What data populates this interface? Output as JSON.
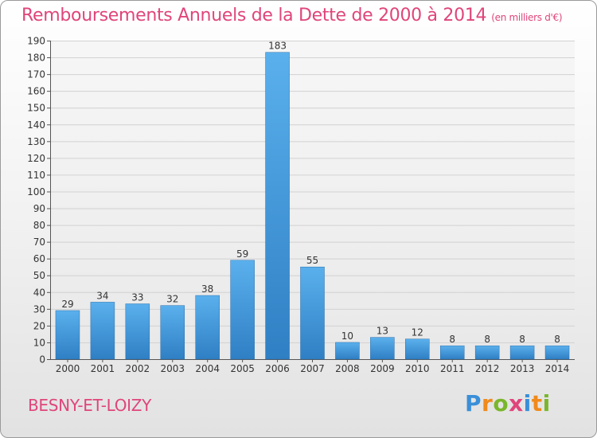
{
  "header": {
    "title": "Remboursements Annuels de la Dette de 2000 à 2014",
    "unit": "(en milliers d'€)"
  },
  "commune": "BESNY-ET-LOIZY",
  "logo": {
    "letters": [
      "P",
      "r",
      "o",
      "x",
      "i",
      "t",
      "i"
    ],
    "colors": [
      "#3a8fd8",
      "#f08a1c",
      "#7ab62c",
      "#e0457b",
      "#3a8fd8",
      "#f08a1c",
      "#7ab62c"
    ]
  },
  "colors": {
    "title": "#e0457b",
    "bar_light": "#5ab0ec",
    "bar_dark": "#2f7fc4",
    "grid": "#d2d2d2",
    "axis": "#555555"
  },
  "chart_data": {
    "type": "bar",
    "title": "Remboursements Annuels de la Dette de 2000 à 2014",
    "categories": [
      "2000",
      "2001",
      "2002",
      "2003",
      "2004",
      "2005",
      "2006",
      "2007",
      "2008",
      "2009",
      "2010",
      "2011",
      "2012",
      "2013",
      "2014"
    ],
    "values": [
      29,
      34,
      33,
      32,
      38,
      59,
      183,
      55,
      10,
      13,
      12,
      8,
      8,
      8,
      8
    ],
    "data_labels": [
      "29",
      "34",
      "33",
      "32",
      "38",
      "59",
      "183",
      "55",
      "10",
      "13",
      "12",
      "8",
      "8",
      "8",
      "8"
    ],
    "yticks": [
      0,
      10,
      20,
      30,
      40,
      50,
      60,
      70,
      80,
      90,
      100,
      110,
      120,
      130,
      140,
      150,
      160,
      170,
      180,
      190
    ],
    "ylim": [
      0,
      190
    ],
    "grid": true,
    "legend": "none"
  }
}
